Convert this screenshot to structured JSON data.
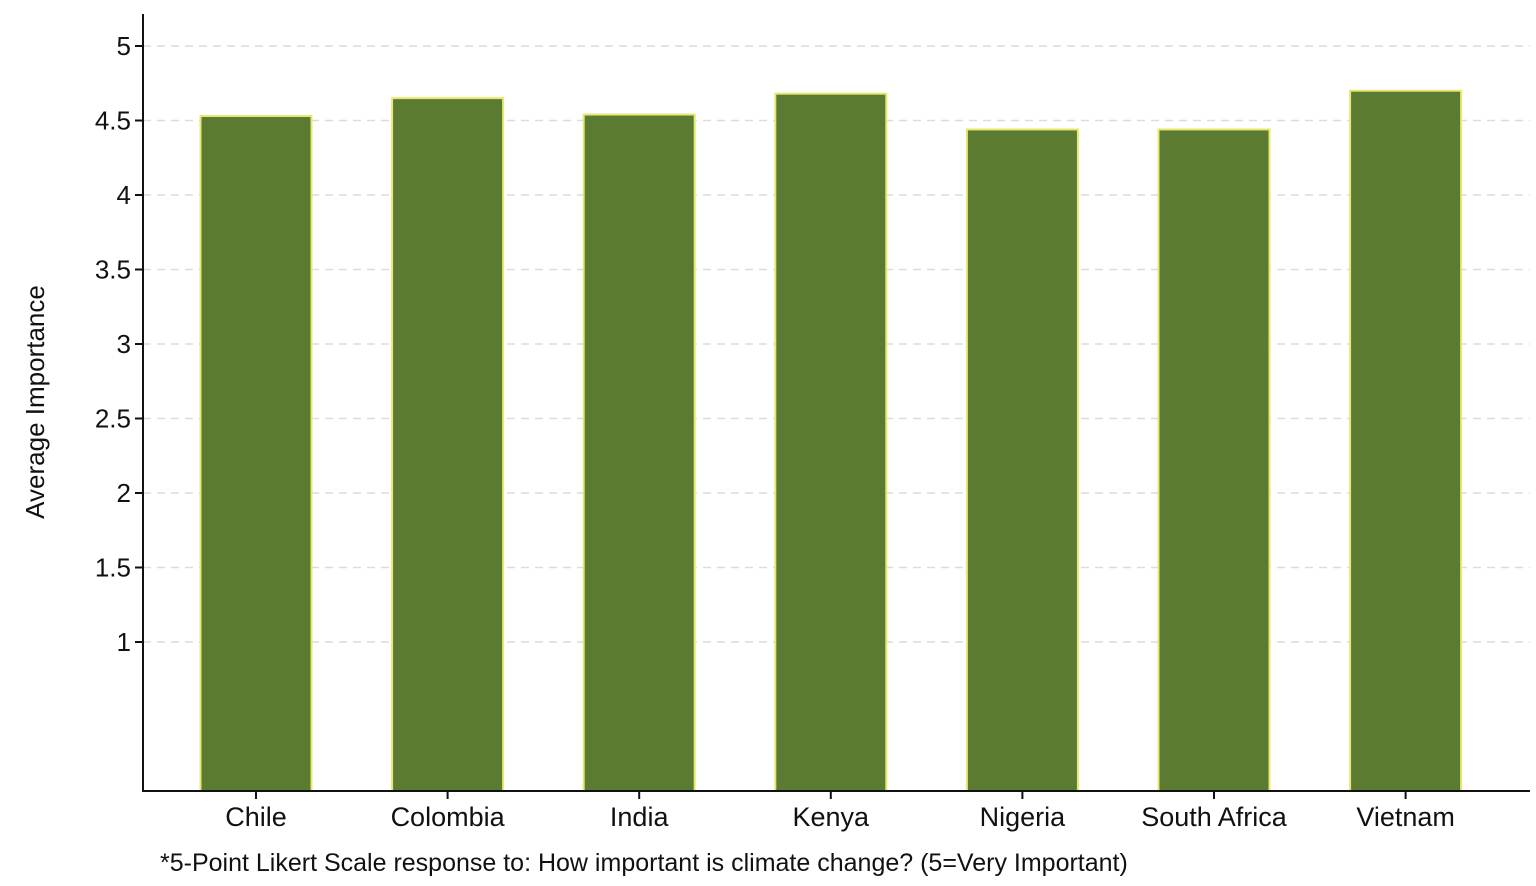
{
  "chart_data": {
    "type": "bar",
    "title": "",
    "xlabel": "",
    "ylabel": "Average Importance",
    "ylim": [
      0,
      5
    ],
    "yticks": [
      1,
      1.5,
      2,
      2.5,
      3,
      3.5,
      4,
      4.5,
      5
    ],
    "ytick_labels": [
      "1",
      "1.5",
      "2",
      "2.5",
      "3",
      "3.5",
      "4",
      "4.5",
      "5"
    ],
    "grid": true,
    "categories": [
      "Chile",
      "Colombia",
      "India",
      "Kenya",
      "Nigeria",
      "South Africa",
      "Vietnam"
    ],
    "values": [
      4.53,
      4.65,
      4.54,
      4.68,
      4.44,
      4.44,
      4.7
    ],
    "bar_color": "#5a7b31",
    "bar_edge_color": "#e6e870",
    "note": "*5-Point Likert Scale response to: How important is climate change? (5=Very Important)"
  }
}
